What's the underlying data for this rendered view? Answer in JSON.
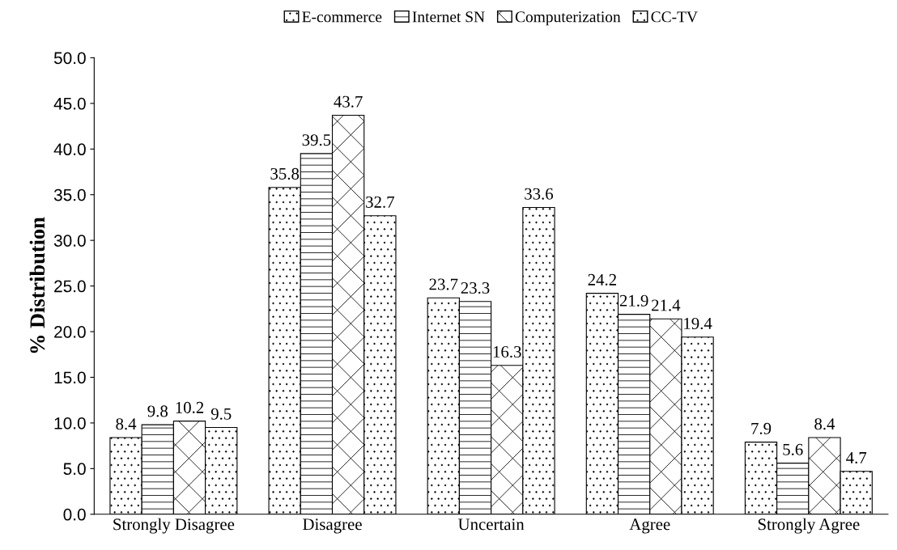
{
  "chart_data": {
    "type": "bar",
    "ylabel": "% Distribution",
    "categories": [
      "Strongly Disagree",
      "Disagree",
      "Uncertain",
      "Agree",
      "Strongly Agree"
    ],
    "series": [
      {
        "name": "E-commerce",
        "color": "#000000",
        "values": [
          8.4,
          35.8,
          23.7,
          24.2,
          7.9
        ]
      },
      {
        "name": "Internet SN",
        "color": "#000000",
        "values": [
          9.8,
          39.5,
          23.3,
          21.9,
          5.6
        ]
      },
      {
        "name": "Computerization",
        "color": "#000000",
        "values": [
          10.2,
          43.7,
          16.3,
          21.4,
          8.4
        ]
      },
      {
        "name": "CC-TV",
        "color": "#000000",
        "values": [
          9.5,
          32.7,
          33.6,
          19.4,
          4.7
        ]
      }
    ],
    "ylim": [
      0,
      50
    ],
    "yticks": [
      {
        "value": 0,
        "label": "0.0"
      },
      {
        "value": 5,
        "label": "5.0"
      },
      {
        "value": 10,
        "label": "10.0"
      },
      {
        "value": 15,
        "label": "15.0"
      },
      {
        "value": 20,
        "label": "20.0"
      },
      {
        "value": 25,
        "label": "25.0"
      },
      {
        "value": 30,
        "label": "30.0"
      },
      {
        "value": 35,
        "label": "35.0"
      },
      {
        "value": 40,
        "label": "40.0"
      },
      {
        "value": 45,
        "label": "45.0"
      },
      {
        "value": 50,
        "label": "50.0"
      }
    ],
    "data_labels": true,
    "legend": "top",
    "grid": false
  }
}
